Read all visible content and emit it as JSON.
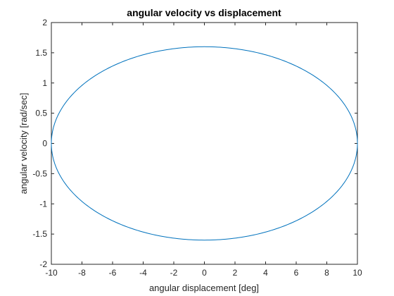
{
  "chart_data": {
    "type": "line",
    "title": "angular velocity vs displacement",
    "xlabel": "angular displacement [deg]",
    "ylabel": "angular velocity [rad/sec]",
    "xlim": [
      -10,
      10
    ],
    "ylim": [
      -2,
      2
    ],
    "xticks": [
      "-10",
      "-8",
      "-6",
      "-4",
      "-2",
      "0",
      "2",
      "4",
      "6",
      "8",
      "10"
    ],
    "yticks": [
      "-2",
      "-1.5",
      "-1",
      "-0.5",
      "0",
      "0.5",
      "1",
      "1.5",
      "2"
    ],
    "grid": false,
    "series": [
      {
        "color": "#0072bd",
        "shape": "ellipse",
        "x_amplitude": 10,
        "y_amplitude": 1.6,
        "center": [
          0,
          0
        ],
        "x": [
          10,
          9.511,
          8.09,
          5.878,
          3.09,
          0,
          -3.09,
          -5.878,
          -8.09,
          -9.511,
          -10,
          -9.511,
          -8.09,
          -5.878,
          -3.09,
          0,
          3.09,
          5.878,
          8.09,
          9.511,
          10
        ],
        "y": [
          0,
          0.494,
          0.94,
          1.294,
          1.522,
          1.6,
          1.522,
          1.294,
          0.94,
          0.494,
          0,
          -0.494,
          -0.94,
          -1.294,
          -1.522,
          -1.6,
          -1.522,
          -1.294,
          -0.94,
          -0.494,
          0
        ]
      }
    ]
  }
}
